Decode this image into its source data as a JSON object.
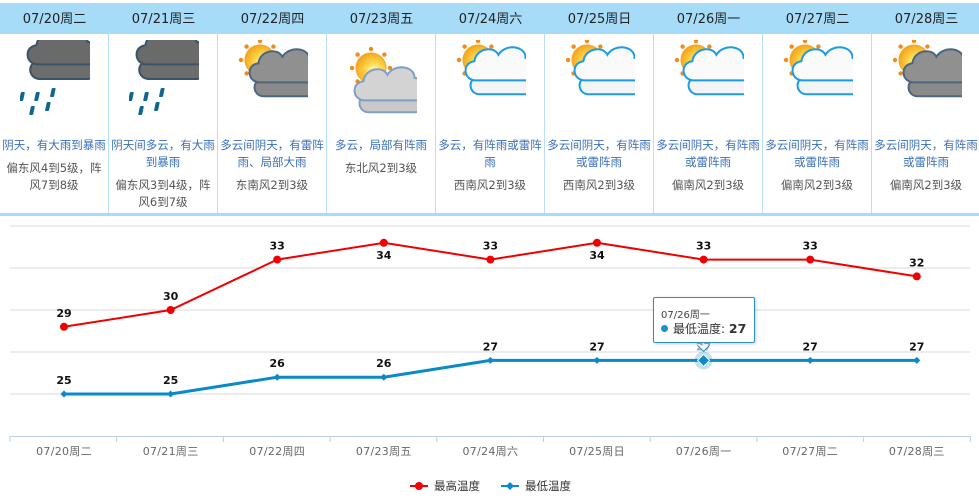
{
  "forecast": {
    "days": [
      {
        "date": "07/20周二",
        "icon": "heavy-rain-icon",
        "desc": "阴天，有大雨到暴雨",
        "wind": "偏东风4到5级，阵风7到8级"
      },
      {
        "date": "07/21周三",
        "icon": "heavy-rain-icon",
        "desc": "阴天间多云，有大雨到暴雨",
        "wind": "偏东风3到4级，阵风6到7级"
      },
      {
        "date": "07/22周四",
        "icon": "sun-behind-dark-cloud-icon",
        "desc": "多云间阴天，有雷阵雨、局部大雨",
        "wind": "东南风2到3级"
      },
      {
        "date": "07/23周五",
        "icon": "sun-behind-grey-cloud-icon",
        "desc": "多云，局部有阵雨",
        "wind": "东北风2到3级"
      },
      {
        "date": "07/24周六",
        "icon": "partly-cloudy-icon",
        "desc": "多云，有阵雨或雷阵雨",
        "wind": "西南风2到3级"
      },
      {
        "date": "07/25周日",
        "icon": "partly-cloudy-icon",
        "desc": "多云间阴天，有阵雨或雷阵雨",
        "wind": "西南风2到3级"
      },
      {
        "date": "07/26周一",
        "icon": "partly-cloudy-icon",
        "desc": "多云间阴天，有阵雨或雷阵雨",
        "wind": "偏南风2到3级"
      },
      {
        "date": "07/27周二",
        "icon": "partly-cloudy-icon",
        "desc": "多云间阴天，有阵雨或雷阵雨",
        "wind": "偏南风2到3级"
      },
      {
        "date": "07/28周三",
        "icon": "sun-behind-dark-cloud-icon",
        "desc": "多云间阴天，有阵雨或雷阵雨",
        "wind": "偏南风2到3级"
      }
    ],
    "colors": {
      "header_bg": "#a7dcf8",
      "desc_text": "#3a6fb8",
      "wind_text": "#555555"
    }
  },
  "chart_data": {
    "type": "line",
    "title": "",
    "xlabel": "",
    "ylabel": "",
    "categories": [
      "07/20周二",
      "07/21周三",
      "07/22周四",
      "07/23周五",
      "07/24周六",
      "07/25周日",
      "07/26周一",
      "07/27周二",
      "07/28周三"
    ],
    "series": [
      {
        "name": "最高温度",
        "color": "#f00000",
        "values": [
          29,
          30,
          33,
          34,
          33,
          34,
          33,
          33,
          32
        ]
      },
      {
        "name": "最低温度",
        "color": "#0a8ac8",
        "values": [
          25,
          25,
          26,
          26,
          27,
          27,
          27,
          27,
          27
        ]
      }
    ],
    "ylim": [
      22.5,
      35
    ],
    "grid": true,
    "legend_position": "bottom",
    "tooltip": {
      "date": "07/26周一",
      "series": "最低温度",
      "label": "最低温度:",
      "value": "27"
    }
  },
  "legend": {
    "high": "最高温度",
    "low": "最低温度"
  }
}
